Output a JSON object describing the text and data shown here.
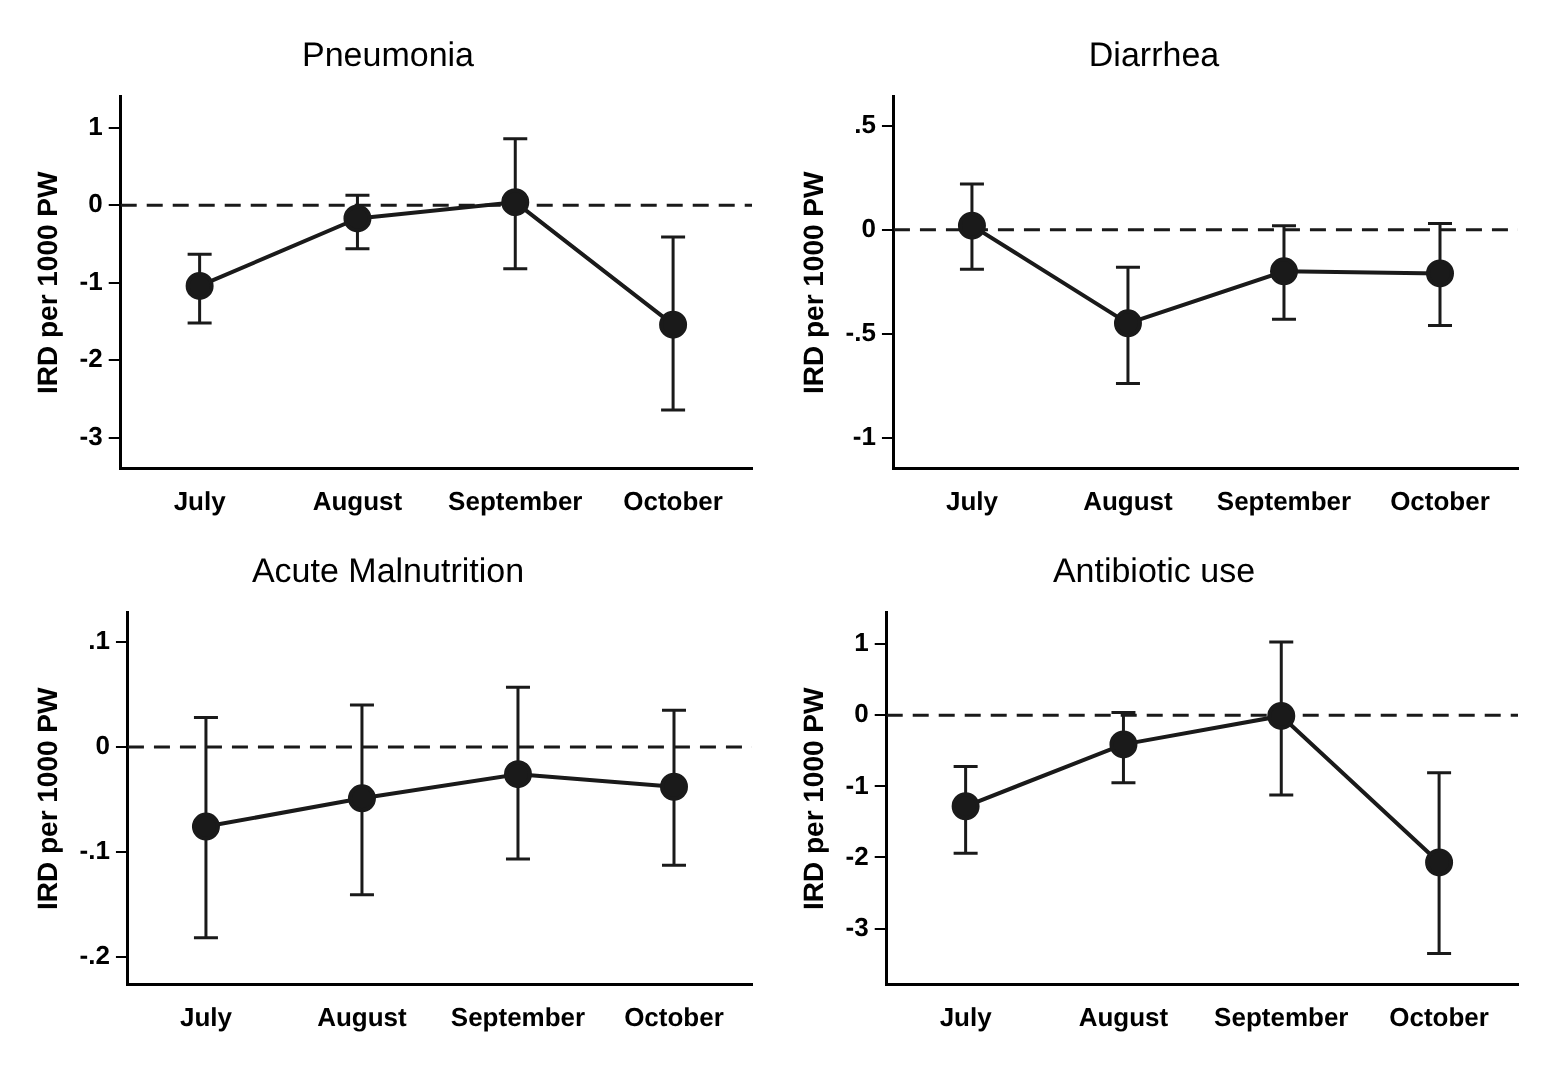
{
  "chart_data": [
    {
      "type": "line",
      "title": "Pneumonia",
      "ylabel": "IRD per 1000 PW",
      "categories": [
        "July",
        "August",
        "September",
        "October"
      ],
      "series": [
        {
          "color": "#1a1a1a",
          "values": [
            -1.04,
            -0.17,
            0.04,
            -1.54
          ],
          "errors": [
            [
              -1.52,
              -0.63
            ],
            [
              -0.56,
              0.13
            ],
            [
              -0.82,
              0.86
            ],
            [
              -2.64,
              -0.41
            ]
          ]
        }
      ],
      "ylim": [
        -3.4,
        1.4
      ],
      "yticks": [
        -3,
        -2,
        -1,
        0,
        1
      ],
      "ref_lines": [
        {
          "axis": "y",
          "value": 0,
          "color": "#1a1a1a",
          "line_style": "dashed"
        }
      ],
      "grid": false,
      "legend": false,
      "marker": "circle",
      "line_style": "solid"
    },
    {
      "type": "line",
      "title": "Diarrhea",
      "ylabel": "IRD per 1000 PW",
      "categories": [
        "July",
        "August",
        "September",
        "October"
      ],
      "series": [
        {
          "color": "#1a1a1a",
          "values": [
            0.02,
            -0.45,
            -0.2,
            -0.21
          ],
          "errors": [
            [
              -0.19,
              0.22
            ],
            [
              -0.74,
              -0.18
            ],
            [
              -0.43,
              0.02
            ],
            [
              -0.46,
              0.03
            ]
          ]
        }
      ],
      "ylim": [
        -1.15,
        0.64
      ],
      "yticks": [
        {
          "value": -1,
          "label": "-1"
        },
        {
          "value": -0.5,
          "label": "-.5"
        },
        {
          "value": 0,
          "label": "0"
        },
        {
          "value": 0.5,
          "label": ".5"
        }
      ],
      "ref_lines": [
        {
          "axis": "y",
          "value": 0,
          "color": "#1a1a1a",
          "line_style": "dashed"
        }
      ],
      "grid": false,
      "legend": false,
      "marker": "circle",
      "line_style": "solid"
    },
    {
      "type": "line",
      "title": "Acute Malnutrition",
      "ylabel": "IRD per 1000 PW",
      "categories": [
        "July",
        "August",
        "September",
        "October"
      ],
      "series": [
        {
          "color": "#1a1a1a",
          "values": [
            -0.076,
            -0.049,
            -0.026,
            -0.038
          ],
          "errors": [
            [
              -0.182,
              0.028
            ],
            [
              -0.141,
              0.04
            ],
            [
              -0.107,
              0.057
            ],
            [
              -0.113,
              0.035
            ]
          ]
        }
      ],
      "ylim": [
        -0.227,
        0.128
      ],
      "yticks": [
        {
          "value": -0.2,
          "label": "-.2"
        },
        {
          "value": -0.1,
          "label": "-.1"
        },
        {
          "value": 0,
          "label": "0"
        },
        {
          "value": 0.1,
          "label": ".1"
        }
      ],
      "ref_lines": [
        {
          "axis": "y",
          "value": 0,
          "color": "#1a1a1a",
          "line_style": "dashed"
        }
      ],
      "grid": false,
      "legend": false,
      "marker": "circle",
      "line_style": "solid"
    },
    {
      "type": "line",
      "title": "Antibiotic use",
      "ylabel": "IRD per 1000 PW",
      "categories": [
        "July",
        "August",
        "September",
        "October"
      ],
      "series": [
        {
          "color": "#1a1a1a",
          "values": [
            -1.28,
            -0.41,
            -0.01,
            -2.07
          ],
          "errors": [
            [
              -1.94,
              -0.72
            ],
            [
              -0.95,
              0.04
            ],
            [
              -1.12,
              1.03
            ],
            [
              -3.35,
              -0.81
            ]
          ]
        }
      ],
      "ylim": [
        -3.79,
        1.44
      ],
      "yticks": [
        -3,
        -2,
        -1,
        0,
        1
      ],
      "ref_lines": [
        {
          "axis": "y",
          "value": 0,
          "color": "#1a1a1a",
          "line_style": "dashed"
        }
      ],
      "grid": false,
      "legend": false,
      "marker": "circle",
      "line_style": "solid"
    }
  ]
}
